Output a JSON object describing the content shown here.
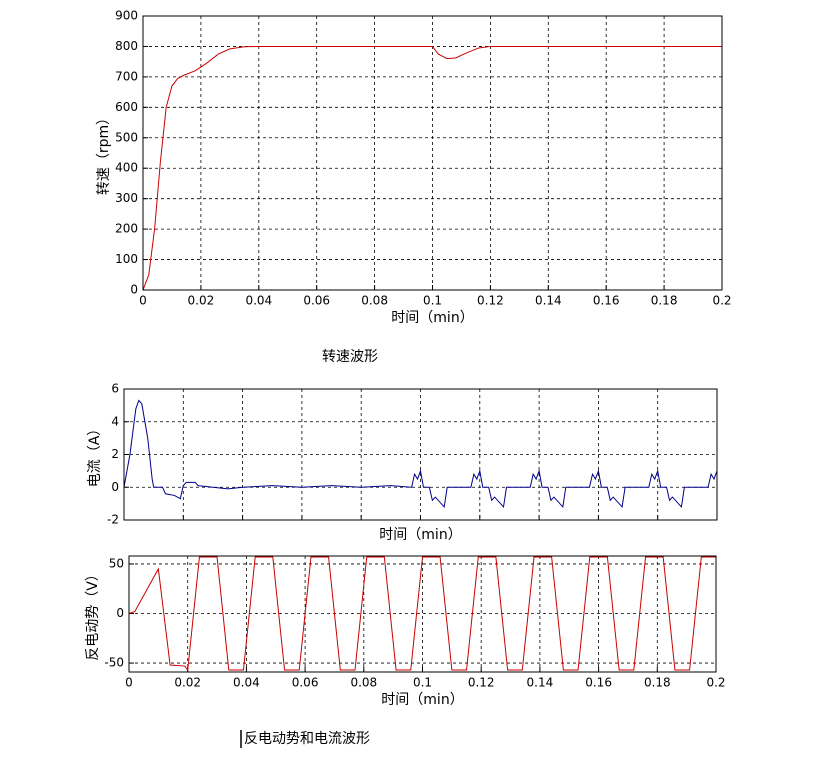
{
  "captions": [
    "转速波形",
    "反电动势和电流波形"
  ],
  "chart_data": [
    {
      "type": "line",
      "xlabel": "时间（min）",
      "ylabel": "转速（rpm）",
      "xlim": [
        0,
        0.2
      ],
      "xticks": [
        0,
        0.02,
        0.04,
        0.06,
        0.08,
        0.1,
        0.12,
        0.14,
        0.16,
        0.18,
        0.2
      ],
      "ylim": [
        0,
        900
      ],
      "yticks": [
        0,
        100,
        200,
        300,
        400,
        500,
        600,
        700,
        800,
        900
      ],
      "grid": true,
      "xtick_labels": true,
      "x": [
        0,
        0.002,
        0.004,
        0.006,
        0.008,
        0.01,
        0.012,
        0.014,
        0.018,
        0.022,
        0.026,
        0.03,
        0.035,
        0.04,
        0.1,
        0.102,
        0.105,
        0.108,
        0.112,
        0.116,
        0.12,
        0.2
      ],
      "series": [
        {
          "color": "#cc0000",
          "values": [
            0,
            50,
            200,
            420,
            600,
            670,
            695,
            705,
            720,
            745,
            775,
            792,
            799,
            800,
            800,
            775,
            760,
            762,
            780,
            795,
            800,
            800
          ]
        }
      ]
    },
    {
      "type": "line",
      "xlabel": "时间（min）",
      "ylabel": "电流（A）",
      "xlim": [
        0,
        0.2
      ],
      "xticks": [
        0,
        0.02,
        0.04,
        0.06,
        0.08,
        0.1,
        0.12,
        0.14,
        0.16,
        0.18,
        0.2
      ],
      "ylim": [
        -2,
        6
      ],
      "yticks": [
        -2,
        0,
        2,
        4,
        6
      ],
      "grid": true,
      "xtick_labels": false,
      "x": [
        0,
        0.002,
        0.004,
        0.005,
        0.006,
        0.008,
        0.0095,
        0.01,
        0.013,
        0.014,
        0.017,
        0.019,
        0.02,
        0.021,
        0.024,
        0.025,
        0.03,
        0.035,
        0.04,
        0.05,
        0.06,
        0.07,
        0.08,
        0.09,
        0.097,
        0.098,
        0.099,
        0.1,
        0.101,
        0.103,
        0.104,
        0.105,
        0.108,
        0.109,
        0.117,
        0.118,
        0.119,
        0.12,
        0.121,
        0.123,
        0.124,
        0.125,
        0.128,
        0.129,
        0.137,
        0.138,
        0.139,
        0.14,
        0.141,
        0.143,
        0.144,
        0.145,
        0.148,
        0.149,
        0.157,
        0.158,
        0.159,
        0.16,
        0.161,
        0.163,
        0.164,
        0.165,
        0.168,
        0.169,
        0.177,
        0.178,
        0.179,
        0.18,
        0.181,
        0.183,
        0.184,
        0.185,
        0.188,
        0.189,
        0.197,
        0.198,
        0.199,
        0.2
      ],
      "series": [
        {
          "color": "#00008b",
          "values": [
            0,
            2,
            4.8,
            5.3,
            5.1,
            3,
            0.5,
            0,
            0,
            -0.4,
            -0.5,
            -0.7,
            0.1,
            0.3,
            0.3,
            0.1,
            0,
            -0.1,
            0,
            0.1,
            0,
            0.1,
            0,
            0.1,
            0,
            0.8,
            0.5,
            1.0,
            0,
            0,
            -0.8,
            -0.6,
            -1.2,
            0,
            0,
            0.8,
            0.5,
            1.0,
            0,
            0,
            -0.8,
            -0.6,
            -1.2,
            0,
            0,
            0.8,
            0.5,
            1.0,
            0,
            0,
            -0.8,
            -0.6,
            -1.2,
            0,
            0,
            0.8,
            0.5,
            1.0,
            0,
            0,
            -0.8,
            -0.6,
            -1.2,
            0,
            0,
            0.8,
            0.5,
            1.0,
            0,
            0,
            -0.8,
            -0.6,
            -1.2,
            0,
            0,
            0.8,
            0.5,
            1.0
          ]
        }
      ]
    },
    {
      "type": "line",
      "xlabel": "时间（min）",
      "ylabel": "反电动势（V）",
      "xlim": [
        0,
        0.2
      ],
      "xticks": [
        0,
        0.02,
        0.04,
        0.06,
        0.08,
        0.1,
        0.12,
        0.14,
        0.16,
        0.18,
        0.2
      ],
      "ylim": [
        -59,
        58
      ],
      "yticks": [
        -50,
        0,
        50
      ],
      "grid": true,
      "xtick_labels": true,
      "x": [
        0,
        0.002,
        0.01,
        0.014,
        0.019,
        0.02,
        0.024,
        0.03,
        0.034,
        0.039,
        0.043,
        0.049,
        0.053,
        0.058,
        0.062,
        0.068,
        0.072,
        0.077,
        0.081,
        0.087,
        0.091,
        0.096,
        0.1,
        0.106,
        0.11,
        0.115,
        0.119,
        0.125,
        0.129,
        0.134,
        0.138,
        0.144,
        0.148,
        0.153,
        0.157,
        0.163,
        0.167,
        0.172,
        0.176,
        0.182,
        0.186,
        0.191,
        0.195,
        0.2
      ],
      "series": [
        {
          "color": "#cc0000",
          "values": [
            0,
            2,
            45,
            -52,
            -53,
            -57,
            57,
            57,
            -57,
            -57,
            57,
            57,
            -57,
            -57,
            57,
            57,
            -57,
            -57,
            57,
            57,
            -57,
            -57,
            57,
            57,
            -57,
            -57,
            57,
            57,
            -57,
            -57,
            57,
            57,
            -57,
            -57,
            57,
            57,
            -57,
            -57,
            57,
            57,
            -57,
            -57,
            57,
            57
          ]
        }
      ]
    }
  ]
}
